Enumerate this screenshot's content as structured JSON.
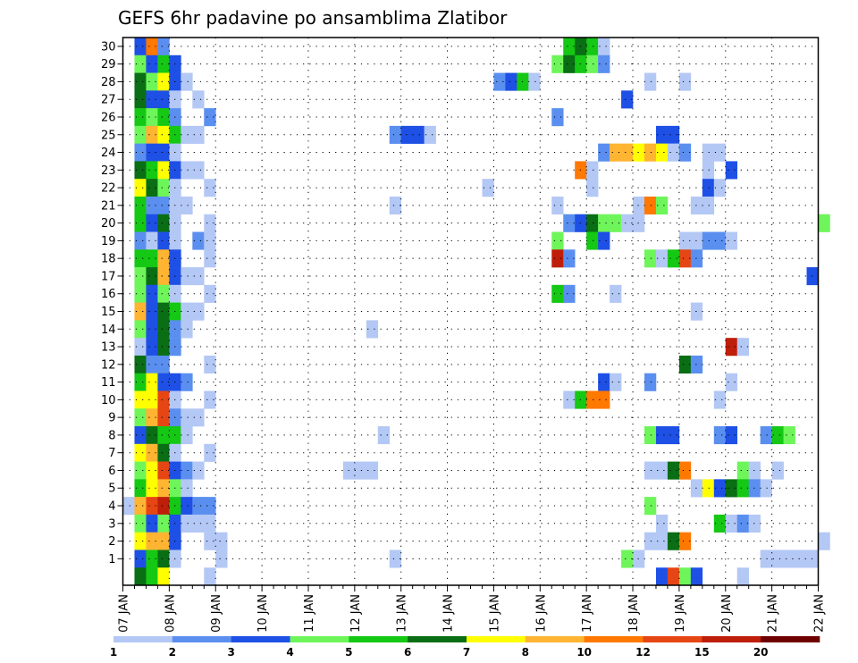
{
  "chart_data": {
    "type": "heatmap",
    "title": "GEFS 6hr padavine po ansamblima Zlatibor",
    "y_categories": [
      "1",
      "2",
      "3",
      "4",
      "5",
      "6",
      "7",
      "8",
      "9",
      "10",
      "11",
      "12",
      "13",
      "14",
      "15",
      "16",
      "17",
      "18",
      "19",
      "20",
      "21",
      "22",
      "23",
      "24",
      "25",
      "26",
      "27",
      "28",
      "29",
      "30"
    ],
    "x_tick_labels": [
      "07 JAN",
      "08 JAN",
      "09 JAN",
      "10 JAN",
      "11 JAN",
      "12 JAN",
      "13 JAN",
      "14 JAN",
      "15 JAN",
      "16 JAN",
      "17 JAN",
      "18 JAN",
      "19 JAN",
      "20 JAN",
      "21 JAN",
      "22 JAN"
    ],
    "time_steps_per_day": 4,
    "grid": "dotted",
    "color_levels": [
      {
        "label": "1",
        "color": "#b4c8f5"
      },
      {
        "label": "2",
        "color": "#5a8ff0"
      },
      {
        "label": "3",
        "color": "#1e50e6"
      },
      {
        "label": "4",
        "color": "#6ef55a"
      },
      {
        "label": "5",
        "color": "#14c814"
      },
      {
        "label": "6",
        "color": "#0a6e14"
      },
      {
        "label": "7",
        "color": "#ffff00"
      },
      {
        "label": "8",
        "color": "#ffb432"
      },
      {
        "label": "10",
        "color": "#ff7800"
      },
      {
        "label": "12",
        "color": "#e64614"
      },
      {
        "label": "15",
        "color": "#be1e0a"
      },
      {
        "label": "20",
        "color": "#6e0000"
      }
    ],
    "cells": [
      [
        30,
        1,
        3
      ],
      [
        30,
        2,
        10
      ],
      [
        30,
        3,
        2
      ],
      [
        30,
        38,
        5
      ],
      [
        30,
        39,
        6
      ],
      [
        30,
        40,
        5
      ],
      [
        30,
        41,
        1
      ],
      [
        29,
        1,
        4
      ],
      [
        29,
        2,
        3
      ],
      [
        29,
        3,
        5
      ],
      [
        29,
        4,
        3
      ],
      [
        29,
        37,
        4
      ],
      [
        29,
        38,
        6
      ],
      [
        29,
        39,
        5
      ],
      [
        29,
        40,
        4
      ],
      [
        29,
        41,
        2
      ],
      [
        28,
        1,
        6
      ],
      [
        28,
        2,
        4
      ],
      [
        28,
        3,
        7
      ],
      [
        28,
        4,
        3
      ],
      [
        28,
        5,
        1
      ],
      [
        28,
        32,
        2
      ],
      [
        28,
        33,
        3
      ],
      [
        28,
        34,
        5
      ],
      [
        28,
        35,
        1
      ],
      [
        28,
        45,
        1
      ],
      [
        28,
        48,
        1
      ],
      [
        27,
        1,
        6
      ],
      [
        27,
        2,
        3
      ],
      [
        27,
        3,
        3
      ],
      [
        27,
        4,
        1
      ],
      [
        27,
        6,
        1
      ],
      [
        27,
        43,
        3
      ],
      [
        26,
        1,
        5
      ],
      [
        26,
        2,
        4
      ],
      [
        26,
        3,
        5
      ],
      [
        26,
        4,
        2
      ],
      [
        26,
        7,
        2
      ],
      [
        26,
        37,
        2
      ],
      [
        25,
        1,
        4
      ],
      [
        25,
        2,
        8
      ],
      [
        25,
        3,
        7
      ],
      [
        25,
        4,
        5
      ],
      [
        25,
        5,
        1
      ],
      [
        25,
        6,
        1
      ],
      [
        25,
        23,
        2
      ],
      [
        25,
        24,
        3
      ],
      [
        25,
        25,
        3
      ],
      [
        25,
        26,
        1
      ],
      [
        25,
        46,
        3
      ],
      [
        25,
        47,
        3
      ],
      [
        24,
        1,
        2
      ],
      [
        24,
        2,
        3
      ],
      [
        24,
        3,
        3
      ],
      [
        24,
        4,
        1
      ],
      [
        24,
        41,
        2
      ],
      [
        24,
        42,
        8
      ],
      [
        24,
        43,
        8
      ],
      [
        24,
        44,
        7
      ],
      [
        24,
        45,
        8
      ],
      [
        24,
        46,
        7
      ],
      [
        24,
        47,
        1
      ],
      [
        24,
        48,
        2
      ],
      [
        24,
        50,
        1
      ],
      [
        24,
        51,
        1
      ],
      [
        23,
        1,
        6
      ],
      [
        23,
        2,
        5
      ],
      [
        23,
        3,
        7
      ],
      [
        23,
        4,
        3
      ],
      [
        23,
        5,
        1
      ],
      [
        23,
        6,
        1
      ],
      [
        23,
        39,
        10
      ],
      [
        23,
        40,
        1
      ],
      [
        23,
        50,
        1
      ],
      [
        23,
        52,
        3
      ],
      [
        22,
        1,
        7
      ],
      [
        22,
        2,
        6
      ],
      [
        22,
        3,
        4
      ],
      [
        22,
        4,
        1
      ],
      [
        22,
        7,
        1
      ],
      [
        22,
        31,
        1
      ],
      [
        22,
        40,
        1
      ],
      [
        22,
        50,
        3
      ],
      [
        22,
        51,
        1
      ],
      [
        21,
        1,
        5
      ],
      [
        21,
        2,
        2
      ],
      [
        21,
        3,
        2
      ],
      [
        21,
        4,
        1
      ],
      [
        21,
        5,
        1
      ],
      [
        21,
        23,
        1
      ],
      [
        21,
        37,
        1
      ],
      [
        21,
        44,
        1
      ],
      [
        21,
        45,
        10
      ],
      [
        21,
        46,
        4
      ],
      [
        21,
        49,
        1
      ],
      [
        21,
        50,
        1
      ],
      [
        20,
        1,
        5
      ],
      [
        20,
        2,
        3
      ],
      [
        20,
        3,
        6
      ],
      [
        20,
        4,
        1
      ],
      [
        20,
        7,
        1
      ],
      [
        20,
        38,
        2
      ],
      [
        20,
        39,
        3
      ],
      [
        20,
        40,
        6
      ],
      [
        20,
        41,
        4
      ],
      [
        20,
        42,
        4
      ],
      [
        20,
        43,
        1
      ],
      [
        20,
        44,
        1
      ],
      [
        20,
        60,
        4
      ],
      [
        19,
        1,
        2
      ],
      [
        19,
        2,
        1
      ],
      [
        19,
        3,
        3
      ],
      [
        19,
        4,
        1
      ],
      [
        19,
        6,
        2
      ],
      [
        19,
        7,
        1
      ],
      [
        19,
        37,
        4
      ],
      [
        19,
        40,
        5
      ],
      [
        19,
        41,
        3
      ],
      [
        19,
        48,
        1
      ],
      [
        19,
        49,
        1
      ],
      [
        19,
        50,
        2
      ],
      [
        19,
        51,
        2
      ],
      [
        19,
        52,
        1
      ],
      [
        18,
        1,
        5
      ],
      [
        18,
        2,
        5
      ],
      [
        18,
        3,
        8
      ],
      [
        18,
        4,
        3
      ],
      [
        18,
        7,
        1
      ],
      [
        18,
        37,
        15
      ],
      [
        18,
        38,
        2
      ],
      [
        18,
        45,
        4
      ],
      [
        18,
        46,
        1
      ],
      [
        18,
        47,
        5
      ],
      [
        18,
        48,
        12
      ],
      [
        18,
        49,
        2
      ],
      [
        17,
        1,
        4
      ],
      [
        17,
        2,
        6
      ],
      [
        17,
        3,
        8
      ],
      [
        17,
        4,
        3
      ],
      [
        17,
        5,
        1
      ],
      [
        17,
        6,
        1
      ],
      [
        17,
        59,
        3
      ],
      [
        16,
        1,
        4
      ],
      [
        16,
        2,
        3
      ],
      [
        16,
        3,
        4
      ],
      [
        16,
        4,
        1
      ],
      [
        16,
        7,
        1
      ],
      [
        16,
        37,
        5
      ],
      [
        16,
        38,
        2
      ],
      [
        16,
        42,
        1
      ],
      [
        15,
        1,
        8
      ],
      [
        15,
        2,
        3
      ],
      [
        15,
        3,
        6
      ],
      [
        15,
        4,
        5
      ],
      [
        15,
        5,
        1
      ],
      [
        15,
        6,
        1
      ],
      [
        15,
        49,
        1
      ],
      [
        14,
        1,
        4
      ],
      [
        14,
        2,
        3
      ],
      [
        14,
        3,
        6
      ],
      [
        14,
        4,
        2
      ],
      [
        14,
        5,
        1
      ],
      [
        14,
        21,
        1
      ],
      [
        13,
        1,
        1
      ],
      [
        13,
        2,
        3
      ],
      [
        13,
        3,
        6
      ],
      [
        13,
        4,
        2
      ],
      [
        13,
        52,
        15
      ],
      [
        13,
        53,
        1
      ],
      [
        12,
        1,
        6
      ],
      [
        12,
        2,
        2
      ],
      [
        12,
        3,
        2
      ],
      [
        12,
        7,
        1
      ],
      [
        12,
        48,
        6
      ],
      [
        12,
        49,
        2
      ],
      [
        11,
        1,
        5
      ],
      [
        11,
        2,
        7
      ],
      [
        11,
        3,
        3
      ],
      [
        11,
        4,
        3
      ],
      [
        11,
        5,
        2
      ],
      [
        11,
        41,
        3
      ],
      [
        11,
        42,
        1
      ],
      [
        11,
        45,
        2
      ],
      [
        11,
        52,
        1
      ],
      [
        10,
        1,
        7
      ],
      [
        10,
        2,
        7
      ],
      [
        10,
        3,
        12
      ],
      [
        10,
        4,
        1
      ],
      [
        10,
        7,
        1
      ],
      [
        10,
        38,
        1
      ],
      [
        10,
        39,
        5
      ],
      [
        10,
        40,
        10
      ],
      [
        10,
        41,
        10
      ],
      [
        10,
        51,
        1
      ],
      [
        9,
        1,
        4
      ],
      [
        9,
        2,
        8
      ],
      [
        9,
        3,
        12
      ],
      [
        9,
        4,
        2
      ],
      [
        9,
        5,
        1
      ],
      [
        9,
        6,
        1
      ],
      [
        8,
        1,
        3
      ],
      [
        8,
        2,
        6
      ],
      [
        8,
        3,
        5
      ],
      [
        8,
        4,
        5
      ],
      [
        8,
        5,
        1
      ],
      [
        8,
        22,
        1
      ],
      [
        8,
        45,
        4
      ],
      [
        8,
        46,
        3
      ],
      [
        8,
        47,
        3
      ],
      [
        8,
        51,
        2
      ],
      [
        8,
        52,
        3
      ],
      [
        8,
        55,
        2
      ],
      [
        8,
        56,
        5
      ],
      [
        8,
        57,
        4
      ],
      [
        7,
        1,
        7
      ],
      [
        7,
        2,
        8
      ],
      [
        7,
        3,
        6
      ],
      [
        7,
        4,
        1
      ],
      [
        7,
        7,
        1
      ],
      [
        6,
        1,
        4
      ],
      [
        6,
        2,
        7
      ],
      [
        6,
        3,
        12
      ],
      [
        6,
        4,
        3
      ],
      [
        6,
        5,
        2
      ],
      [
        6,
        6,
        1
      ],
      [
        6,
        19,
        1
      ],
      [
        6,
        20,
        1
      ],
      [
        6,
        21,
        1
      ],
      [
        6,
        45,
        1
      ],
      [
        6,
        46,
        1
      ],
      [
        6,
        47,
        6
      ],
      [
        6,
        48,
        10
      ],
      [
        6,
        53,
        4
      ],
      [
        6,
        54,
        1
      ],
      [
        6,
        56,
        1
      ],
      [
        5,
        1,
        5
      ],
      [
        5,
        2,
        7
      ],
      [
        5,
        3,
        8
      ],
      [
        5,
        4,
        4
      ],
      [
        5,
        5,
        1
      ],
      [
        5,
        49,
        1
      ],
      [
        5,
        50,
        7
      ],
      [
        5,
        51,
        3
      ],
      [
        5,
        52,
        6
      ],
      [
        5,
        53,
        5
      ],
      [
        5,
        54,
        2
      ],
      [
        5,
        55,
        1
      ],
      [
        4,
        0,
        1
      ],
      [
        4,
        1,
        8
      ],
      [
        4,
        2,
        12
      ],
      [
        4,
        3,
        15
      ],
      [
        4,
        4,
        5
      ],
      [
        4,
        5,
        3
      ],
      [
        4,
        6,
        2
      ],
      [
        4,
        7,
        2
      ],
      [
        4,
        45,
        4
      ],
      [
        3,
        1,
        4
      ],
      [
        3,
        2,
        3
      ],
      [
        3,
        3,
        4
      ],
      [
        3,
        4,
        3
      ],
      [
        3,
        5,
        1
      ],
      [
        3,
        6,
        1
      ],
      [
        3,
        7,
        1
      ],
      [
        3,
        46,
        1
      ],
      [
        3,
        51,
        5
      ],
      [
        3,
        52,
        1
      ],
      [
        3,
        53,
        2
      ],
      [
        3,
        54,
        1
      ],
      [
        2,
        1,
        7
      ],
      [
        2,
        2,
        8
      ],
      [
        2,
        3,
        8
      ],
      [
        2,
        4,
        3
      ],
      [
        2,
        7,
        1
      ],
      [
        2,
        8,
        1
      ],
      [
        2,
        45,
        1
      ],
      [
        2,
        46,
        1
      ],
      [
        2,
        47,
        6
      ],
      [
        2,
        48,
        10
      ],
      [
        2,
        60,
        1
      ],
      [
        1,
        1,
        3
      ],
      [
        1,
        2,
        5
      ],
      [
        1,
        3,
        6
      ],
      [
        1,
        4,
        1
      ],
      [
        1,
        8,
        1
      ],
      [
        1,
        23,
        1
      ],
      [
        1,
        43,
        4
      ],
      [
        1,
        44,
        1
      ],
      [
        1,
        55,
        1
      ],
      [
        1,
        56,
        1
      ],
      [
        1,
        57,
        1
      ],
      [
        1,
        58,
        1
      ],
      [
        1,
        59,
        1
      ],
      [
        0,
        1,
        6
      ],
      [
        0,
        2,
        5
      ],
      [
        0,
        3,
        7
      ],
      [
        0,
        7,
        1
      ],
      [
        0,
        46,
        3
      ],
      [
        0,
        47,
        12
      ],
      [
        0,
        48,
        4
      ],
      [
        0,
        49,
        3
      ],
      [
        0,
        53,
        1
      ]
    ]
  }
}
